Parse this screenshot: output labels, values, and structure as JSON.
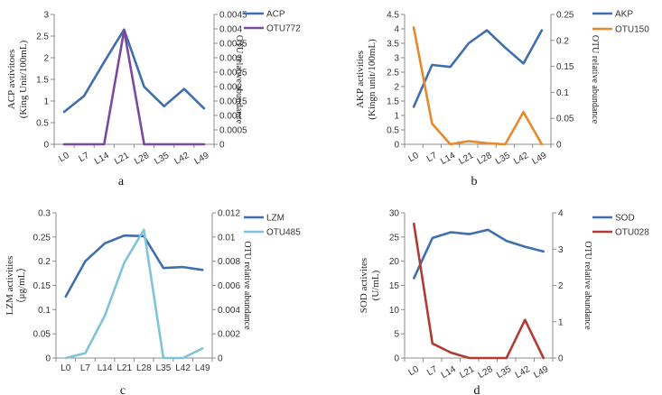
{
  "colors": {
    "blue": "#3F6FAE",
    "purple": "#7B4A9E",
    "orange": "#E8892B",
    "lightblue": "#7FC4D8",
    "red": "#B13A33",
    "axis": "#8C8C8C"
  },
  "chart_data": [
    {
      "id": "a",
      "type": "line",
      "panel_label": "a",
      "categories": [
        "L0",
        "L7",
        "L14",
        "L21",
        "L28",
        "L35",
        "L42",
        "L49"
      ],
      "ylabel": "ACP avtivitoes",
      "ylabel_unit": "(King Unit/100mL)",
      "y2label": "OTU  relative abundance",
      "ylim": [
        0,
        3
      ],
      "y2lim": [
        0,
        0.0045
      ],
      "yticks": [
        "0",
        "0.5",
        "1",
        "1.5",
        "2",
        "2.5",
        "3"
      ],
      "y2ticks": [
        "0",
        "0.0005",
        "0.001",
        "0.0015",
        "0.002",
        "0.0025",
        "0.003",
        "0.0035",
        "0.004",
        "0.0045"
      ],
      "legend_position": "top-right",
      "grid": false,
      "series": [
        {
          "name": "ACP",
          "axis": "left",
          "color": "#3F6FAE",
          "values": [
            0.75,
            1.12,
            1.9,
            2.65,
            1.33,
            0.88,
            1.28,
            0.83
          ]
        },
        {
          "name": "OTU772",
          "axis": "right",
          "color": "#7B4A9E",
          "values": [
            0,
            0,
            0,
            0.00395,
            0,
            0,
            0,
            0
          ]
        }
      ]
    },
    {
      "id": "b",
      "type": "line",
      "panel_label": "b",
      "categories": [
        "L0",
        "L7",
        "L14",
        "L21",
        "L28",
        "L35",
        "L42",
        "L49"
      ],
      "ylabel": "AKP activities",
      "ylabel_unit": "(Kingn unit/100mL)",
      "y2label": "OTU  relative abundance",
      "ylim": [
        0,
        4.5
      ],
      "y2lim": [
        0,
        0.25
      ],
      "yticks": [
        "0",
        "0.5",
        "1",
        "1.5",
        "2",
        "2.5",
        "3",
        "3.5",
        "4",
        "4.5"
      ],
      "y2ticks": [
        "0",
        "0.05",
        "0.1",
        "0.15",
        "0.2",
        "0.25"
      ],
      "legend_position": "top-right",
      "grid": false,
      "series": [
        {
          "name": "AKP",
          "axis": "left",
          "color": "#3F6FAE",
          "values": [
            1.3,
            2.75,
            2.68,
            3.5,
            3.95,
            3.35,
            2.8,
            3.95
          ]
        },
        {
          "name": "OTU150",
          "axis": "right",
          "color": "#E8892B",
          "values": [
            0.225,
            0.04,
            0.0,
            0.006,
            0.002,
            0.0,
            0.062,
            0.0
          ]
        }
      ]
    },
    {
      "id": "c",
      "type": "line",
      "panel_label": "c",
      "categories": [
        "L0",
        "L7",
        "L14",
        "L21",
        "L28",
        "L35",
        "L42",
        "L49"
      ],
      "ylabel": "LZM activities",
      "ylabel_unit": "（μg/mL）",
      "y2label": "OTU relative abundance",
      "ylim": [
        0,
        0.3
      ],
      "y2lim": [
        0,
        0.012
      ],
      "yticks": [
        "0",
        "0.05",
        "0.1",
        "0.15",
        "0.2",
        "0.25",
        "0.3"
      ],
      "y2ticks": [
        "0",
        "0.002",
        "0.004",
        "0.006",
        "0.008",
        "0.01",
        "0.012"
      ],
      "legend_position": "top-right",
      "grid": false,
      "series": [
        {
          "name": "LZM",
          "axis": "left",
          "color": "#3F6FAE",
          "values": [
            0.127,
            0.2,
            0.237,
            0.253,
            0.252,
            0.186,
            0.188,
            0.182
          ]
        },
        {
          "name": "OTU485",
          "axis": "right",
          "color": "#7FC4D8",
          "values": [
            0.0,
            0.0004,
            0.0035,
            0.0079,
            0.0106,
            0.0,
            0.0,
            0.0008
          ]
        }
      ]
    },
    {
      "id": "d",
      "type": "line",
      "panel_label": "d",
      "categories": [
        "L0",
        "L7",
        "L14",
        "L21",
        "L28",
        "L35",
        "L42",
        "L49"
      ],
      "ylabel": "SOD activites",
      "ylabel_unit": "(U/mL)",
      "y2label": "OTU relative abundance",
      "ylim": [
        0,
        30
      ],
      "y2lim": [
        0,
        4
      ],
      "yticks": [
        "0",
        "5",
        "10",
        "15",
        "20",
        "25",
        "30"
      ],
      "y2ticks": [
        "0",
        "1",
        "2",
        "3",
        "4"
      ],
      "legend_position": "top-right",
      "grid": false,
      "series": [
        {
          "name": "SOD",
          "axis": "left",
          "color": "#3F6FAE",
          "values": [
            16.5,
            24.8,
            26.0,
            25.6,
            26.5,
            24.2,
            23.0,
            22.0
          ]
        },
        {
          "name": "OTU028",
          "axis": "right",
          "color": "#B13A33",
          "values": [
            3.7,
            0.4,
            0.15,
            0.0,
            0.0,
            0.0,
            1.05,
            0.0
          ]
        }
      ]
    }
  ]
}
